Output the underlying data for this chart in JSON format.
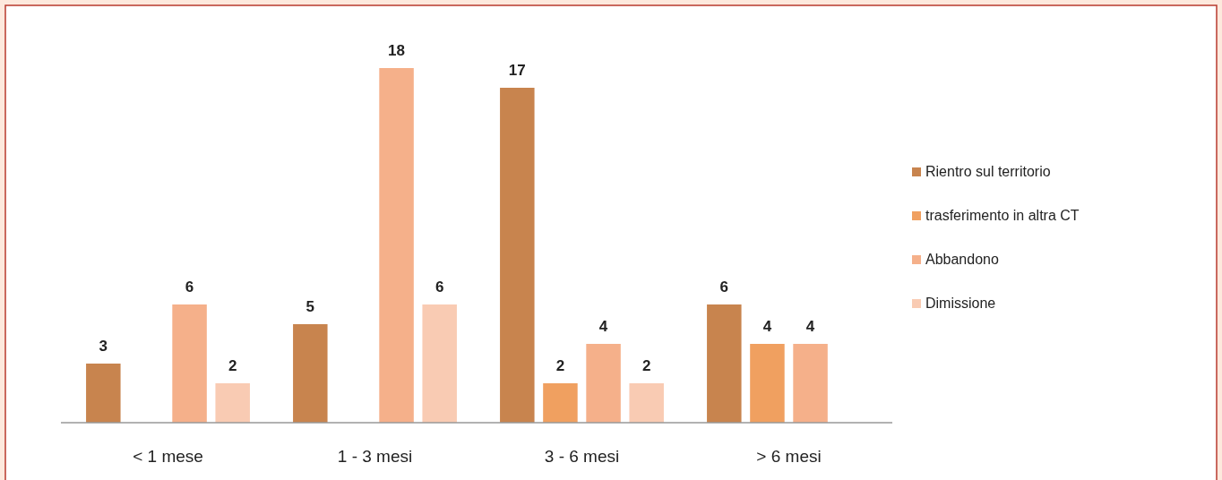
{
  "chart_data": {
    "type": "bar",
    "categories": [
      "< 1 mese",
      "1 - 3 mesi",
      "3 - 6 mesi",
      "> 6 mesi"
    ],
    "series": [
      {
        "name": "Rientro sul territorio",
        "color": "#c8844e",
        "values": [
          3,
          5,
          17,
          6
        ]
      },
      {
        "name": "trasferimento in altra CT",
        "color": "#f0a060",
        "values": [
          null,
          null,
          2,
          4
        ]
      },
      {
        "name": "Abbandono",
        "color": "#f5b08a",
        "values": [
          6,
          18,
          4,
          4
        ]
      },
      {
        "name": "Dimissione",
        "color": "#f9cbb3",
        "values": [
          2,
          6,
          2,
          null
        ]
      }
    ],
    "data_labels": true,
    "legend": "right",
    "grid": false
  }
}
